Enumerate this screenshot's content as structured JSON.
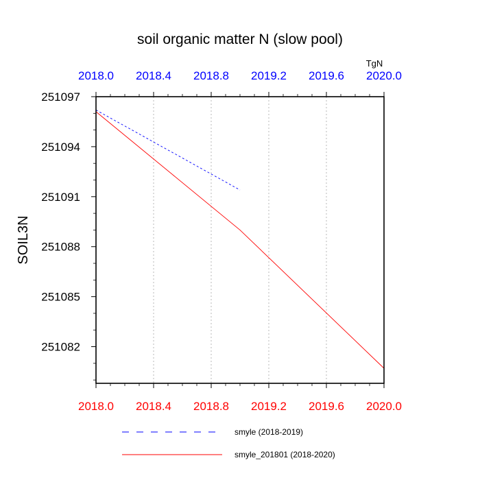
{
  "chart_data": {
    "type": "line",
    "title": "soil organic matter N (slow pool)",
    "ylabel": "SOIL3N",
    "units": "TgN",
    "xlim": [
      2018.0,
      2020.0
    ],
    "ylim": [
      251079.8,
      251097.0
    ],
    "x_ticks_bottom": [
      "2018.0",
      "2018.4",
      "2018.8",
      "2019.2",
      "2019.6",
      "2020.0"
    ],
    "x_ticks_top": [
      "2018.0",
      "2018.4",
      "2018.8",
      "2019.2",
      "2019.6",
      "2020.0"
    ],
    "x_tick_values": [
      2018.0,
      2018.4,
      2018.8,
      2019.2,
      2019.6,
      2020.0
    ],
    "y_tick_values": [
      251082,
      251085,
      251088,
      251091,
      251094,
      251097
    ],
    "y_ticks": [
      "251082",
      "251085",
      "251088",
      "251091",
      "251094",
      "251097"
    ],
    "y_minor_tick_values": [
      251080,
      251081,
      251083,
      251084,
      251086,
      251087,
      251089,
      251090,
      251092,
      251093,
      251095,
      251096
    ],
    "grid_x": true,
    "colors": {
      "bottom_axis": "#ff0000",
      "top_axis": "#0000ff",
      "grid": "#c8c8c8"
    },
    "series": [
      {
        "name": "smyle (2018-2019)",
        "color": "#0000ff",
        "dash": "dashed",
        "x": [
          2018.0,
          2019.0
        ],
        "y": [
          251096.2,
          251091.4
        ]
      },
      {
        "name": "smyle_201801 (2018-2020)",
        "color": "#ff0000",
        "dash": "solid",
        "x": [
          2018.0,
          2019.0,
          2020.0
        ],
        "y": [
          251096.1,
          251089.0,
          251080.7
        ]
      }
    ]
  }
}
